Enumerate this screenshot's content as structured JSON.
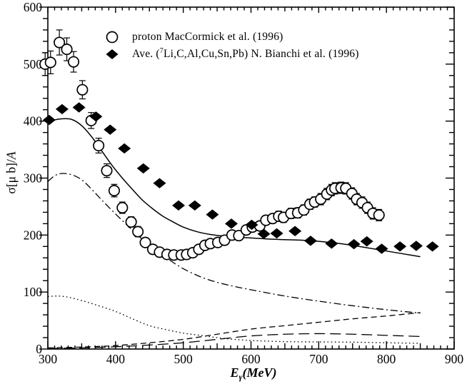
{
  "figure": {
    "background": "#ffffff",
    "ink": "#000000"
  },
  "chart_data": {
    "type": "scatter",
    "title": "",
    "xlabel": {
      "main": "E",
      "sub": "γ",
      "rest": "(MeV)"
    },
    "ylabel": {
      "prefix": "σ[μ b]/",
      "italic": "A"
    },
    "xlim": [
      300,
      900
    ],
    "ylim": [
      0,
      600
    ],
    "x_major_ticks": [
      300,
      400,
      500,
      600,
      700,
      800,
      900
    ],
    "x_medium_step": 50,
    "x_minor_step": 10,
    "y_major_ticks": [
      0,
      100,
      200,
      300,
      400,
      500,
      600
    ],
    "y_minor_step": 20,
    "grid": false,
    "frame": "full-box-mirrored-ticks",
    "legend": {
      "position": "top-left-inside",
      "items": [
        {
          "marker": "open-circle",
          "label": "proton MacCormick et al. (1996)"
        },
        {
          "marker": "filled-diamond",
          "label_prefix": "Ave. (",
          "label_sup": "7",
          "label_rest": "Li,C,Al,Cu,Sn,Pb) N. Bianchi et al. (1996)"
        }
      ]
    },
    "series": [
      {
        "name": "proton MacCormick et al. (1996)",
        "kind": "scatter",
        "marker": "open-circle",
        "x": [
          296,
          304,
          317,
          328,
          338,
          351,
          364,
          375,
          387,
          398,
          410,
          423,
          433,
          444,
          455,
          465,
          476,
          486,
          497,
          505,
          514,
          523,
          532,
          540,
          551,
          561,
          572,
          582,
          593,
          602,
          613,
          622,
          632,
          641,
          648,
          659,
          669,
          678,
          687,
          694,
          703,
          712,
          719,
          724,
          733,
          740,
          749,
          756,
          764,
          772,
          780,
          789
        ],
        "y": [
          500,
          503,
          538,
          526,
          504,
          455,
          401,
          357,
          313,
          278,
          248,
          223,
          206,
          187,
          175,
          170,
          166,
          165,
          165,
          166,
          169,
          175,
          182,
          185,
          187,
          191,
          200,
          199,
          209,
          214,
          216,
          226,
          229,
          233,
          231,
          238,
          239,
          244,
          254,
          258,
          263,
          272,
          279,
          282,
          283,
          282,
          273,
          263,
          257,
          248,
          238,
          235
        ],
        "yerr": [
          20,
          20,
          22,
          20,
          18,
          16,
          14,
          13,
          12,
          11,
          10,
          9,
          9,
          8,
          8,
          8,
          8,
          8,
          8,
          8,
          8,
          8,
          8,
          8,
          8,
          8,
          8,
          8,
          8,
          8,
          8,
          8,
          8,
          9,
          9,
          9,
          9,
          9,
          9,
          9,
          10,
          10,
          10,
          10,
          10,
          10,
          10,
          10,
          10,
          10,
          10,
          10
        ]
      },
      {
        "name": "Ave. (7Li,C,Al,Cu,Sn,Pb) N. Bianchi et al. (1996)",
        "kind": "scatter",
        "marker": "filled-diamond",
        "x": [
          302,
          321,
          346,
          371,
          392,
          413,
          441,
          465,
          493,
          517,
          543,
          571,
          601,
          619,
          638,
          665,
          688,
          719,
          752,
          771,
          793,
          820,
          844,
          868
        ],
        "y": [
          402,
          421,
          424,
          408,
          385,
          352,
          317,
          291,
          252,
          252,
          236,
          220,
          218,
          202,
          203,
          207,
          190,
          185,
          184,
          189,
          176,
          180,
          181,
          180
        ]
      },
      {
        "name": "solid line",
        "kind": "line",
        "style": "solid",
        "x": [
          300,
          310,
          320,
          335,
          350,
          365,
          380,
          395,
          410,
          425,
          440,
          455,
          470,
          485,
          500,
          520,
          540,
          560,
          580,
          600,
          625,
          650,
          675,
          700,
          725,
          750,
          775,
          800,
          825,
          850
        ],
        "y": [
          397,
          402,
          404,
          403,
          392,
          372,
          347,
          322,
          300,
          280,
          261,
          246,
          233,
          223,
          214,
          206,
          201,
          198,
          196,
          195,
          193,
          192,
          191,
          189,
          186,
          182,
          177,
          172,
          167,
          162
        ]
      },
      {
        "name": "dash-dot line",
        "kind": "line",
        "style": "dash-dot",
        "x": [
          300,
          310,
          320,
          335,
          350,
          365,
          380,
          400,
          420,
          440,
          460,
          480,
          500,
          525,
          550,
          575,
          600,
          650,
          700,
          750,
          800,
          850
        ],
        "y": [
          294,
          304,
          308,
          306,
          297,
          280,
          261,
          237,
          214,
          192,
          173,
          156,
          141,
          127,
          117,
          110,
          104,
          93,
          84,
          76,
          69,
          63
        ]
      },
      {
        "name": "dotted line",
        "kind": "line",
        "style": "dotted",
        "x": [
          300,
          315,
          330,
          350,
          375,
          400,
          425,
          450,
          475,
          500,
          525,
          550,
          575,
          600,
          650,
          700,
          750,
          800,
          850
        ],
        "y": [
          92,
          93,
          91,
          85,
          76,
          66,
          53,
          41,
          34,
          28,
          24,
          20,
          17,
          15,
          13,
          12.5,
          12,
          11,
          10
        ]
      },
      {
        "name": "dashed line",
        "kind": "line",
        "style": "dashed",
        "x": [
          300,
          350,
          400,
          450,
          500,
          550,
          600,
          650,
          700,
          750,
          800,
          850
        ],
        "y": [
          2,
          3.5,
          6,
          11,
          17,
          26,
          35,
          41,
          47,
          53,
          58,
          64
        ]
      },
      {
        "name": "long-dashed line",
        "kind": "line",
        "style": "long-dashed",
        "x": [
          300,
          350,
          400,
          450,
          500,
          550,
          600,
          650,
          700,
          750,
          800,
          850
        ],
        "y": [
          1,
          2,
          4,
          7,
          11,
          17,
          23,
          26,
          27,
          26,
          24,
          22
        ]
      }
    ]
  }
}
